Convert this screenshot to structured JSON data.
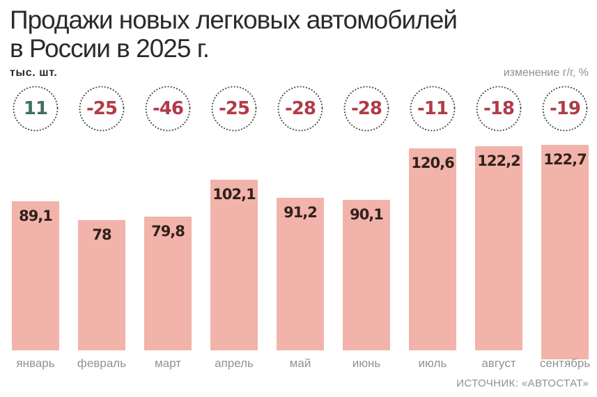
{
  "title": "Продажи новых легковых автомобилей\nв России в 2025 г.",
  "units_left": "тыс. шт.",
  "units_right": "изменение г/г, %",
  "source": "ИСТОЧНИК: «АВТОСТАТ»",
  "colors": {
    "bar": "#f2b3aa",
    "bar_label": "#31211c",
    "positive": "#3e6f63",
    "negative": "#b13b47",
    "dots": "#4a4a4a"
  },
  "chart_data": {
    "type": "bar",
    "title": "Продажи новых легковых автомобилей в России в 2025 г.",
    "categories": [
      "январь",
      "февраль",
      "март",
      "апрель",
      "май",
      "июнь",
      "июль",
      "август",
      "сентябрь"
    ],
    "series": [
      {
        "name": "тыс. шт.",
        "values": [
          89.1,
          78,
          79.8,
          102.1,
          91.2,
          90.1,
          120.6,
          122.2,
          122.7
        ],
        "labels": [
          "89,1",
          "78",
          "79,8",
          "102,1",
          "91,2",
          "90,1",
          "120,6",
          "122,2",
          "122,7"
        ]
      },
      {
        "name": "изменение г/г, %",
        "values": [
          11,
          -25,
          -46,
          -25,
          -28,
          -28,
          -11,
          -18,
          -19
        ],
        "labels": [
          "11",
          "-25",
          "-46",
          "-25",
          "-28",
          "-28",
          "-11",
          "-18",
          "-19"
        ]
      }
    ],
    "ylim": [
      0,
      130
    ],
    "grid": false,
    "legend": false,
    "value_labels": "inside-top",
    "change_badges": "dotted-circles-above-bars"
  }
}
